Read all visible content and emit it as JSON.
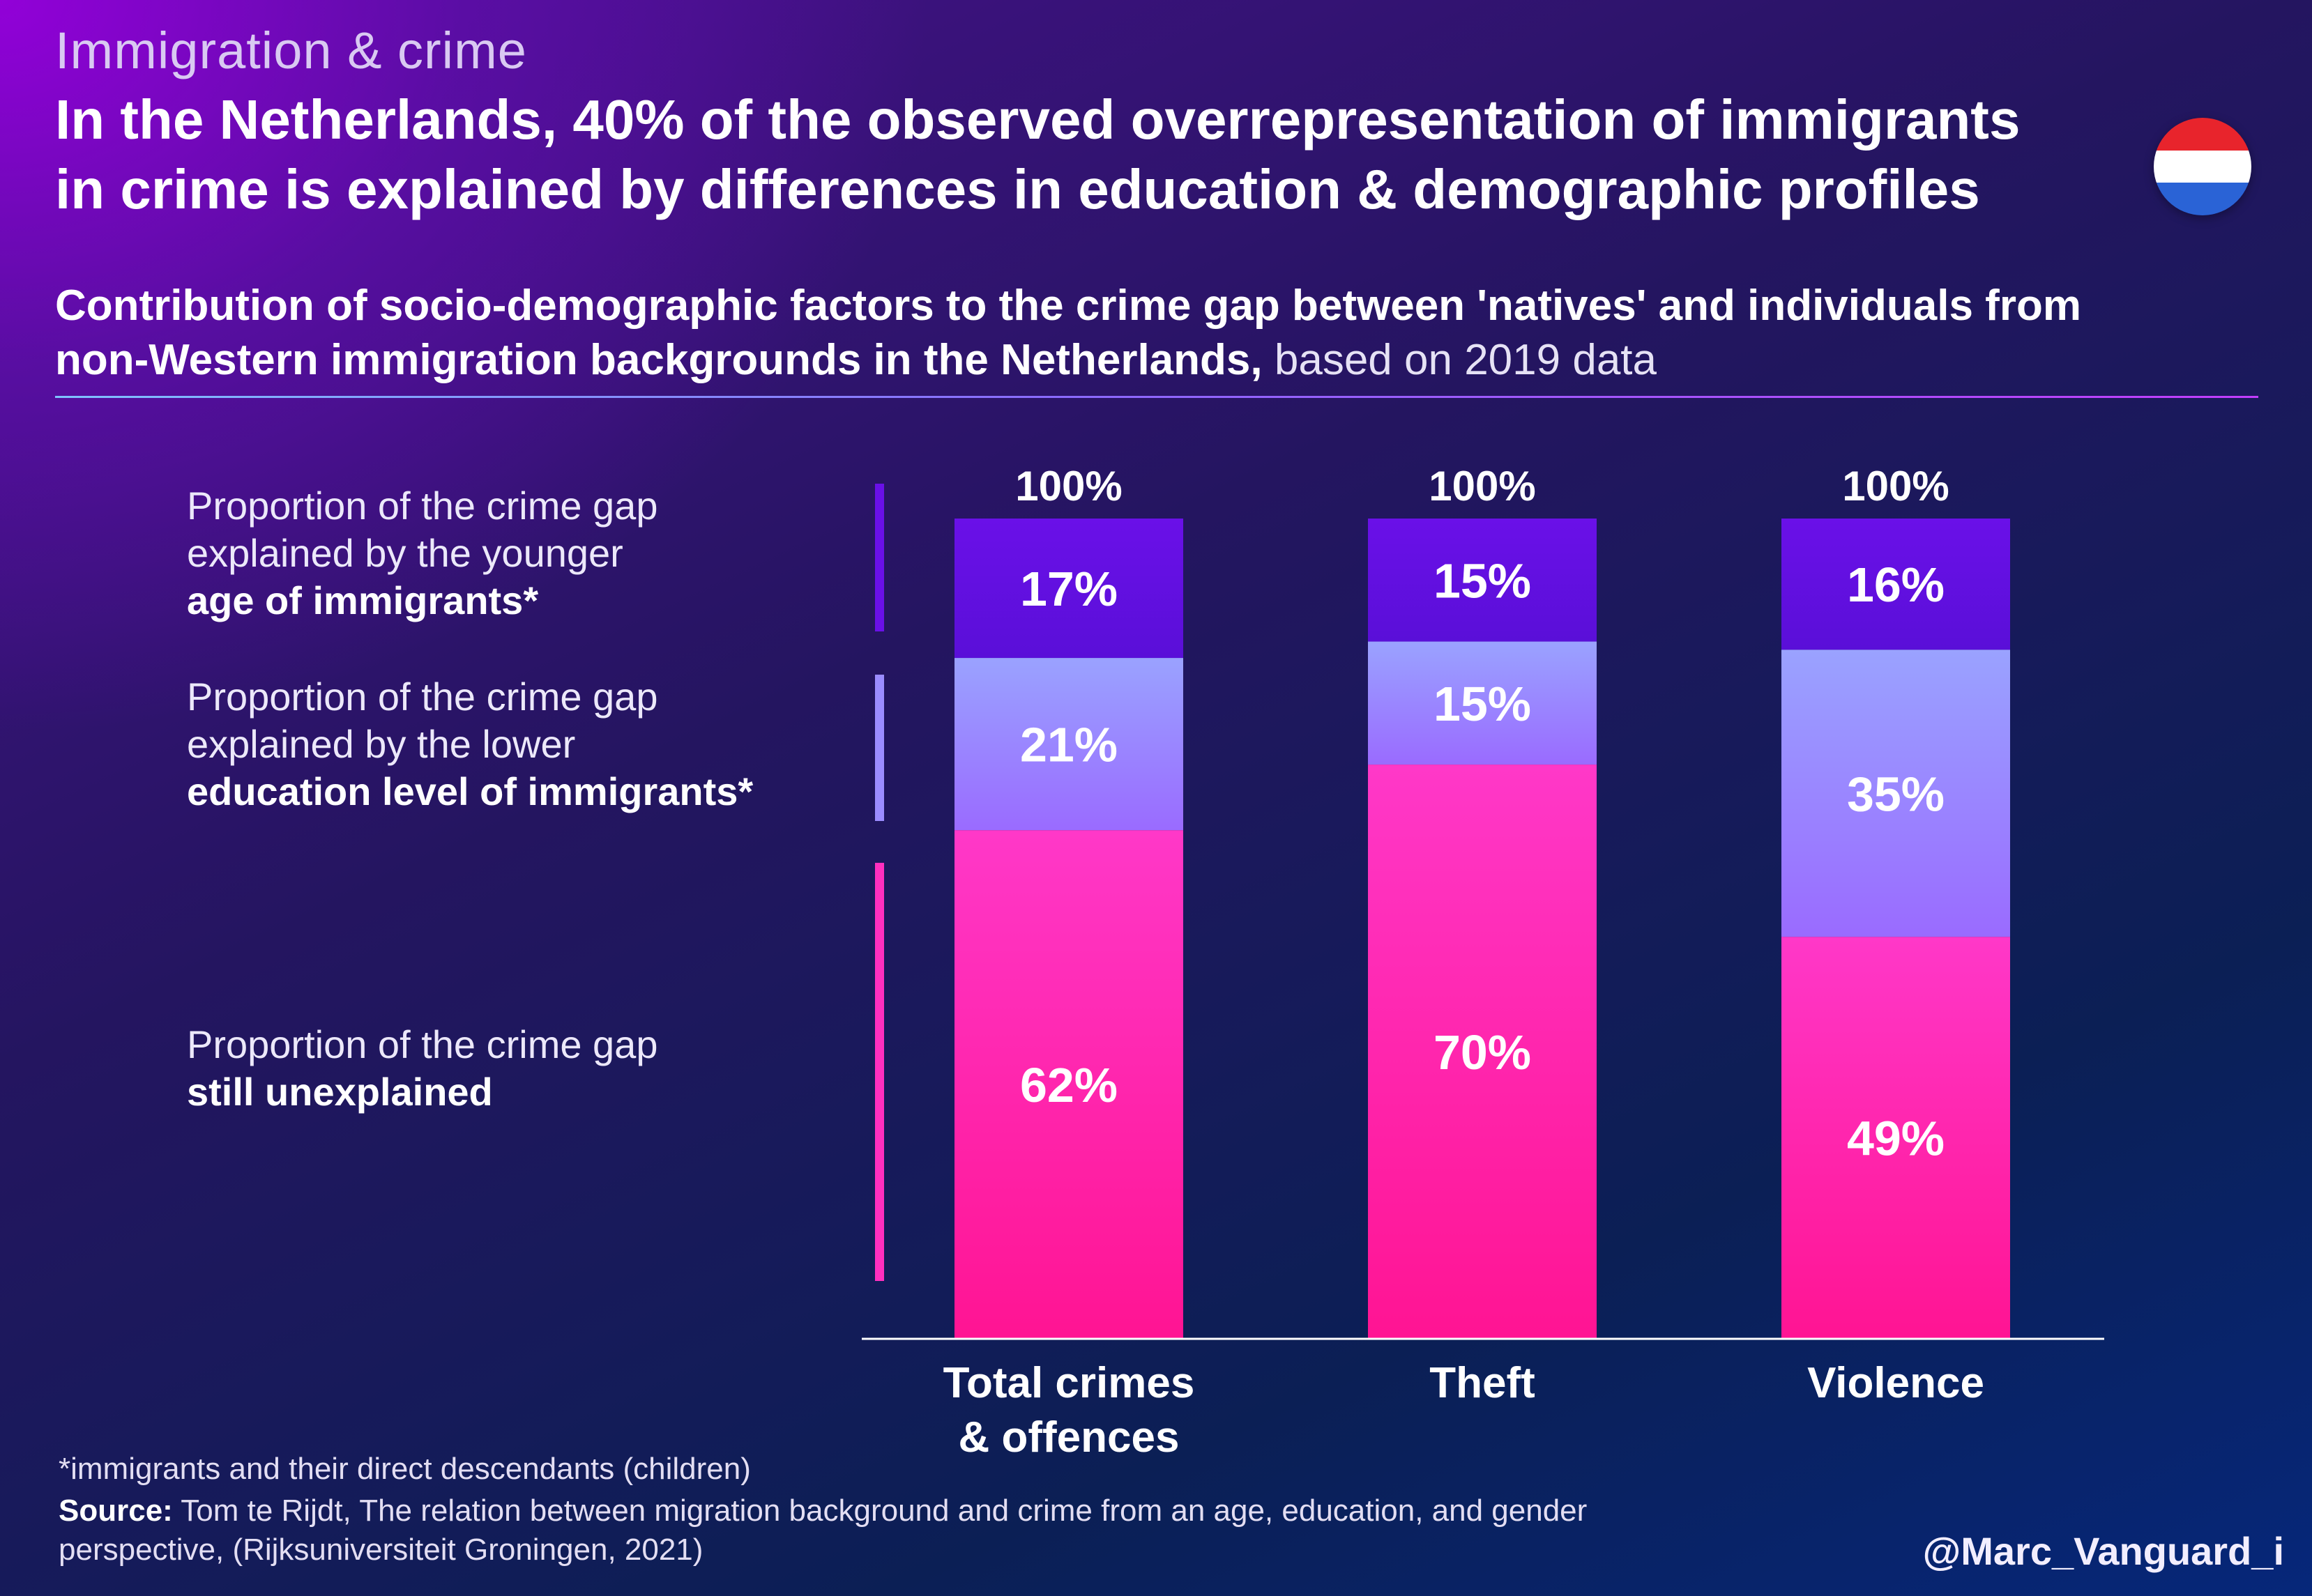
{
  "header": {
    "eyebrow": "Immigration & crime",
    "headline_line1": "In the Netherlands, 40% of the observed overrepresentation of immigrants",
    "headline_line2": "in crime is explained by differences in education & demographic profiles",
    "subtitle_line1": "Contribution of socio-demographic factors to the crime gap between 'natives' and individuals from",
    "subtitle_line2_bold": "non-Western immigration backgrounds in the Netherlands,",
    "subtitle_line2_light": " based on 2019 data"
  },
  "flag": {
    "colors": [
      "#e8242c",
      "#ffffff",
      "#2a63d6"
    ],
    "label": "netherlands-flag"
  },
  "legend": [
    {
      "line1": "Proportion of the crime gap",
      "line2": "explained by the younger",
      "line3": "age of immigrants*",
      "color": "#6a10e8"
    },
    {
      "line1": "Proportion of the crime gap",
      "line2": "explained by the lower",
      "line3": "education level of immigrants*",
      "color": "#9b8cff"
    },
    {
      "line1": "Proportion of the crime gap",
      "line2": "still unexplained",
      "line3": "",
      "color": "#ff2fbf"
    }
  ],
  "chart_data": {
    "type": "bar",
    "stacked": true,
    "categories": [
      "Total crimes & offences",
      "Theft",
      "Violence"
    ],
    "category_lines": [
      [
        "Total crimes",
        "& offences"
      ],
      [
        "Theft"
      ],
      [
        "Violence"
      ]
    ],
    "totals": [
      "100%",
      "100%",
      "100%"
    ],
    "series": [
      {
        "name": "age of immigrants*",
        "values": [
          17,
          15,
          16
        ],
        "labels": [
          "17%",
          "15%",
          "16%"
        ],
        "color": "#6a10e8"
      },
      {
        "name": "education level of immigrants*",
        "values": [
          21,
          15,
          35
        ],
        "labels": [
          "21%",
          "15%",
          "35%"
        ],
        "color": "#9b8cff"
      },
      {
        "name": "still unexplained",
        "values": [
          62,
          70,
          49
        ],
        "labels": [
          "62%",
          "70%",
          "49%"
        ],
        "color": "#ff2fbf"
      }
    ],
    "ylim": [
      0,
      100
    ]
  },
  "footer": {
    "footnote": "*immigrants and their direct descendants (children)",
    "source_label": "Source:",
    "source_line1": " Tom te Rijdt, The relation between migration background and crime from an age, education, and gender",
    "source_line2": "perspective, (Rijksuniversiteit Groningen, 2021)",
    "handle": "@Marc_Vanguard_i"
  }
}
